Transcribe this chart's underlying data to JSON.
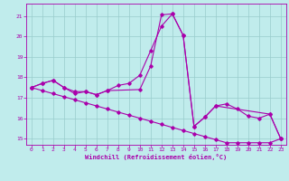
{
  "xlabel": "Windchill (Refroidissement éolien,°C)",
  "bg_color": "#c0ecec",
  "line_color": "#aa00aa",
  "grid_color": "#99cccc",
  "xlim": [
    -0.5,
    23.5
  ],
  "ylim": [
    14.7,
    21.6
  ],
  "xticks": [
    0,
    1,
    2,
    3,
    4,
    5,
    6,
    7,
    8,
    9,
    10,
    11,
    12,
    13,
    14,
    15,
    16,
    17,
    18,
    19,
    20,
    21,
    22,
    23
  ],
  "yticks": [
    15,
    16,
    17,
    18,
    19,
    20,
    21
  ],
  "curve1_x": [
    0,
    1,
    2,
    3,
    4,
    5,
    6,
    7,
    8,
    9,
    10,
    11,
    12,
    13,
    14,
    15,
    16,
    17,
    18,
    19,
    20,
    21,
    22,
    23
  ],
  "curve1_y": [
    17.5,
    17.7,
    17.85,
    17.5,
    17.2,
    17.3,
    17.15,
    17.35,
    17.6,
    17.7,
    18.1,
    19.3,
    20.5,
    21.1,
    20.05,
    15.6,
    16.05,
    16.6,
    16.7,
    16.45,
    16.1,
    16.0,
    16.2,
    15.0
  ],
  "curve2_x": [
    0,
    1,
    2,
    3,
    4,
    5,
    6,
    7,
    8,
    9,
    10,
    11,
    12,
    13,
    14,
    15,
    16,
    17,
    18,
    19,
    20,
    21,
    22,
    23
  ],
  "curve2_y": [
    17.5,
    17.35,
    17.2,
    17.05,
    16.9,
    16.75,
    16.6,
    16.45,
    16.3,
    16.15,
    16.0,
    15.85,
    15.7,
    15.55,
    15.4,
    15.25,
    15.1,
    14.95,
    14.8,
    14.8,
    14.8,
    14.8,
    14.8,
    15.0
  ],
  "curve3_x": [
    0,
    1,
    2,
    3,
    4,
    5,
    6,
    7,
    10,
    11,
    12,
    13,
    14,
    15,
    16,
    17,
    22,
    23
  ],
  "curve3_y": [
    17.5,
    17.7,
    17.85,
    17.5,
    17.3,
    17.3,
    17.15,
    17.35,
    17.4,
    18.55,
    21.05,
    21.1,
    20.05,
    15.6,
    16.05,
    16.6,
    16.2,
    15.0
  ]
}
